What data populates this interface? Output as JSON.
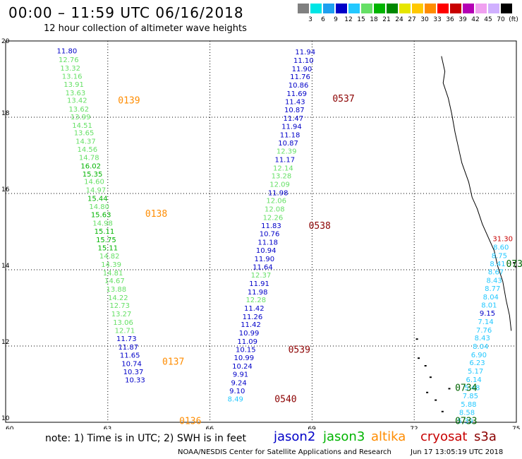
{
  "header": {
    "title": "00:00 – 11:59 UTC 06/16/2018",
    "subtitle": "12 hour collection of altimeter wave heights"
  },
  "color_scale": {
    "labels": [
      "3",
      "6",
      "9",
      "12",
      "15",
      "18",
      "21",
      "24",
      "27",
      "30",
      "33",
      "36",
      "39",
      "42",
      "45",
      "70",
      "(ft)"
    ],
    "colors": [
      "#808080",
      "#00e5e5",
      "#1ea0f0",
      "#0000c8",
      "#23c8ff",
      "#66e066",
      "#00b400",
      "#008800",
      "#e6e600",
      "#ffc800",
      "#ff8c00",
      "#ff0000",
      "#c80000",
      "#b400b4",
      "#f0a0f0",
      "#d0b0ff",
      "#000000"
    ]
  },
  "chart_data": {
    "type": "scatter",
    "xlim": [
      60,
      75
    ],
    "ylim": [
      10,
      20
    ],
    "xticks": [
      "60",
      "63",
      "66",
      "69",
      "72",
      "75"
    ],
    "yticks": [
      "10",
      "12",
      "14",
      "16",
      "18",
      "20"
    ],
    "grid": true,
    "passes": [
      {
        "satellite": "jason3",
        "time_label": "0139",
        "label_color": "#ff8c00",
        "label_lat": 18.45,
        "label_lon": 63.3,
        "points": [
          {
            "lon": 61.8,
            "lat": 19.75,
            "v": "11.80",
            "c": "#0000c8"
          },
          {
            "lon": 61.85,
            "lat": 19.52,
            "v": "12.76",
            "c": "#66e066"
          },
          {
            "lon": 61.9,
            "lat": 19.3,
            "v": "13.32",
            "c": "#66e066"
          },
          {
            "lon": 61.95,
            "lat": 19.08,
            "v": "13.16",
            "c": "#66e066"
          },
          {
            "lon": 62.0,
            "lat": 18.87,
            "v": "13.91",
            "c": "#66e066"
          },
          {
            "lon": 62.05,
            "lat": 18.65,
            "v": "13.63",
            "c": "#66e066"
          },
          {
            "lon": 62.1,
            "lat": 18.45,
            "v": "13.42",
            "c": "#66e066"
          },
          {
            "lon": 62.15,
            "lat": 18.22,
            "v": "13.62",
            "c": "#66e066"
          },
          {
            "lon": 62.2,
            "lat": 18.02,
            "v": "13.99",
            "c": "#66e066"
          },
          {
            "lon": 62.25,
            "lat": 17.8,
            "v": "14.51",
            "c": "#66e066"
          },
          {
            "lon": 62.3,
            "lat": 17.6,
            "v": "13.65",
            "c": "#66e066"
          },
          {
            "lon": 62.35,
            "lat": 17.38,
            "v": "14.37",
            "c": "#66e066"
          },
          {
            "lon": 62.4,
            "lat": 17.17,
            "v": "14.56",
            "c": "#66e066"
          },
          {
            "lon": 62.45,
            "lat": 16.95,
            "v": "14.78",
            "c": "#66e066"
          },
          {
            "lon": 62.5,
            "lat": 16.73,
            "v": "16.02",
            "c": "#00b400"
          },
          {
            "lon": 62.55,
            "lat": 16.52,
            "v": "15.35",
            "c": "#00b400"
          },
          {
            "lon": 62.6,
            "lat": 16.32,
            "v": "14.60",
            "c": "#66e066"
          },
          {
            "lon": 62.65,
            "lat": 16.1,
            "v": "14.97",
            "c": "#66e066"
          },
          {
            "lon": 62.7,
            "lat": 15.88,
            "v": "15.44",
            "c": "#00b400"
          },
          {
            "lon": 62.75,
            "lat": 15.67,
            "v": "14.80",
            "c": "#66e066"
          },
          {
            "lon": 62.8,
            "lat": 15.45,
            "v": "15.63",
            "c": "#00b400"
          },
          {
            "lon": 62.85,
            "lat": 15.23,
            "v": "14.98",
            "c": "#66e066"
          },
          {
            "lon": 62.9,
            "lat": 15.02,
            "v": "15.11",
            "c": "#00b400"
          },
          {
            "lon": 62.95,
            "lat": 14.8,
            "v": "15.75",
            "c": "#00b400"
          },
          {
            "lon": 63.0,
            "lat": 14.58,
            "v": "15.11",
            "c": "#00b400"
          },
          {
            "lon": 63.05,
            "lat": 14.37,
            "v": "14.82",
            "c": "#66e066"
          },
          {
            "lon": 63.1,
            "lat": 14.15,
            "v": "14.39",
            "c": "#66e066"
          },
          {
            "lon": 63.15,
            "lat": 13.93,
            "v": "14.81",
            "c": "#66e066"
          },
          {
            "lon": 63.2,
            "lat": 13.72,
            "v": "14.67",
            "c": "#66e066"
          },
          {
            "lon": 63.25,
            "lat": 13.5,
            "v": "13.88",
            "c": "#66e066"
          },
          {
            "lon": 63.3,
            "lat": 13.28,
            "v": "14.22",
            "c": "#66e066"
          },
          {
            "lon": 63.35,
            "lat": 13.07,
            "v": "12.73",
            "c": "#66e066"
          },
          {
            "lon": 63.4,
            "lat": 12.85,
            "v": "13.27",
            "c": "#66e066"
          }
        ]
      },
      {
        "satellite": "jason3",
        "time_label": "0138",
        "label_color": "#ff8c00",
        "label_lat": 15.48,
        "label_lon": 64.1,
        "points": []
      },
      {
        "satellite": "jason2",
        "time_label": "0137",
        "label_color": "#ff8c00",
        "label_lat": 11.6,
        "label_lon": 64.6,
        "points": [
          {
            "lon": 63.45,
            "lat": 12.63,
            "v": "13.06",
            "c": "#66e066"
          },
          {
            "lon": 63.5,
            "lat": 12.42,
            "v": "12.71",
            "c": "#66e066"
          },
          {
            "lon": 63.55,
            "lat": 12.2,
            "v": "11.73",
            "c": "#0000c8"
          },
          {
            "lon": 63.6,
            "lat": 11.98,
            "v": "11.87",
            "c": "#0000c8"
          },
          {
            "lon": 63.65,
            "lat": 11.77,
            "v": "11.65",
            "c": "#0000c8"
          },
          {
            "lon": 63.7,
            "lat": 11.55,
            "v": "10.74",
            "c": "#0000c8"
          },
          {
            "lon": 63.75,
            "lat": 11.33,
            "v": "10.37",
            "c": "#0000c8"
          },
          {
            "lon": 63.8,
            "lat": 11.12,
            "v": "10.33",
            "c": "#0000c8"
          }
        ]
      },
      {
        "satellite": "altika",
        "time_label": "0136",
        "label_color": "#ff8c00",
        "label_lat": 10.05,
        "label_lon": 65.1,
        "points": []
      },
      {
        "satellite": "jason2",
        "time_label": "0537",
        "label_color": "#8b0000",
        "label_lat": 18.5,
        "label_lon": 69.6,
        "points": [
          {
            "lon": 68.8,
            "lat": 19.72,
            "v": "11.94",
            "c": "#0000c8"
          },
          {
            "lon": 68.75,
            "lat": 19.5,
            "v": "11.10",
            "c": "#0000c8"
          },
          {
            "lon": 68.7,
            "lat": 19.28,
            "v": "11.90",
            "c": "#0000c8"
          },
          {
            "lon": 68.65,
            "lat": 19.07,
            "v": "11.76",
            "c": "#0000c8"
          },
          {
            "lon": 68.6,
            "lat": 18.85,
            "v": "10.86",
            "c": "#0000c8"
          },
          {
            "lon": 68.55,
            "lat": 18.63,
            "v": "11.69",
            "c": "#0000c8"
          },
          {
            "lon": 68.5,
            "lat": 18.42,
            "v": "11.43",
            "c": "#0000c8"
          },
          {
            "lon": 68.48,
            "lat": 18.2,
            "v": "10.87",
            "c": "#0000c8"
          },
          {
            "lon": 68.45,
            "lat": 17.98,
            "v": "11.47",
            "c": "#0000c8"
          },
          {
            "lon": 68.4,
            "lat": 17.77,
            "v": "11.94",
            "c": "#0000c8"
          },
          {
            "lon": 68.35,
            "lat": 17.55,
            "v": "11.18",
            "c": "#0000c8"
          },
          {
            "lon": 68.3,
            "lat": 17.33,
            "v": "10.87",
            "c": "#0000c8"
          },
          {
            "lon": 68.25,
            "lat": 17.12,
            "v": "12.39",
            "c": "#66e066"
          },
          {
            "lon": 68.2,
            "lat": 16.9,
            "v": "11.17",
            "c": "#0000c8"
          },
          {
            "lon": 68.15,
            "lat": 16.68,
            "v": "12.14",
            "c": "#66e066"
          },
          {
            "lon": 68.1,
            "lat": 16.47,
            "v": "13.28",
            "c": "#66e066"
          },
          {
            "lon": 68.05,
            "lat": 16.25,
            "v": "12.09",
            "c": "#66e066"
          },
          {
            "lon": 68.0,
            "lat": 16.03,
            "v": "11.98",
            "c": "#0000c8"
          },
          {
            "lon": 67.95,
            "lat": 15.82,
            "v": "12.06",
            "c": "#66e066"
          },
          {
            "lon": 67.9,
            "lat": 15.6,
            "v": "12.08",
            "c": "#66e066"
          },
          {
            "lon": 67.85,
            "lat": 15.38,
            "v": "12.26",
            "c": "#66e066"
          }
        ]
      },
      {
        "satellite": "jason2",
        "time_label": "0538",
        "label_color": "#8b0000",
        "label_lat": 15.17,
        "label_lon": 68.9,
        "points": [
          {
            "lon": 67.8,
            "lat": 15.17,
            "v": "11.83",
            "c": "#0000c8"
          },
          {
            "lon": 67.75,
            "lat": 14.95,
            "v": "10.76",
            "c": "#0000c8"
          },
          {
            "lon": 67.7,
            "lat": 14.73,
            "v": "11.18",
            "c": "#0000c8"
          },
          {
            "lon": 67.65,
            "lat": 14.52,
            "v": "10.94",
            "c": "#0000c8"
          },
          {
            "lon": 67.6,
            "lat": 14.3,
            "v": "11.90",
            "c": "#0000c8"
          },
          {
            "lon": 67.55,
            "lat": 14.08,
            "v": "11.64",
            "c": "#0000c8"
          },
          {
            "lon": 67.5,
            "lat": 13.87,
            "v": "12.37",
            "c": "#66e066"
          },
          {
            "lon": 67.45,
            "lat": 13.65,
            "v": "11.91",
            "c": "#0000c8"
          },
          {
            "lon": 67.4,
            "lat": 13.43,
            "v": "11.98",
            "c": "#0000c8"
          },
          {
            "lon": 67.35,
            "lat": 13.22,
            "v": "12.28",
            "c": "#66e066"
          },
          {
            "lon": 67.3,
            "lat": 13.0,
            "v": "11.42",
            "c": "#0000c8"
          },
          {
            "lon": 67.25,
            "lat": 12.78,
            "v": "11.26",
            "c": "#0000c8"
          },
          {
            "lon": 67.2,
            "lat": 12.57,
            "v": "11.42",
            "c": "#0000c8"
          },
          {
            "lon": 67.15,
            "lat": 12.35,
            "v": "10.99",
            "c": "#0000c8"
          },
          {
            "lon": 67.1,
            "lat": 12.13,
            "v": "11.09",
            "c": "#0000c8"
          }
        ]
      },
      {
        "satellite": "jason2",
        "time_label": "0539",
        "label_color": "#8b0000",
        "label_lat": 11.92,
        "label_lon": 68.3,
        "points": [
          {
            "lon": 67.05,
            "lat": 11.92,
            "v": "10.15",
            "c": "#0000c8"
          },
          {
            "lon": 67.0,
            "lat": 11.7,
            "v": "10.99",
            "c": "#0000c8"
          },
          {
            "lon": 66.95,
            "lat": 11.48,
            "v": "10.24",
            "c": "#0000c8"
          },
          {
            "lon": 66.9,
            "lat": 11.27,
            "v": "9.91",
            "c": "#0000c8"
          },
          {
            "lon": 66.85,
            "lat": 11.05,
            "v": "9.24",
            "c": "#0000c8"
          },
          {
            "lon": 66.8,
            "lat": 10.83,
            "v": "9.10",
            "c": "#0000c8"
          },
          {
            "lon": 66.75,
            "lat": 10.62,
            "v": "8.49",
            "c": "#23c8ff"
          }
        ]
      },
      {
        "satellite": "jason2",
        "time_label": "0540",
        "label_color": "#8b0000",
        "label_lat": 10.62,
        "label_lon": 67.9,
        "points": []
      },
      {
        "satellite": "cryosat",
        "time_label": "0733",
        "label_color": "#006400",
        "label_lat": 10.05,
        "label_lon": 73.2,
        "points": [
          {
            "lon": 74.6,
            "lat": 14.82,
            "v": "31.30",
            "c": "#c80000"
          },
          {
            "lon": 74.55,
            "lat": 14.6,
            "v": "8.60",
            "c": "#23c8ff"
          },
          {
            "lon": 74.5,
            "lat": 14.38,
            "v": "8.75",
            "c": "#23c8ff"
          },
          {
            "lon": 74.45,
            "lat": 14.17,
            "v": "8.41",
            "c": "#23c8ff"
          },
          {
            "lon": 74.4,
            "lat": 13.95,
            "v": "8.67",
            "c": "#23c8ff"
          },
          {
            "lon": 74.35,
            "lat": 13.73,
            "v": "8.43",
            "c": "#23c8ff"
          },
          {
            "lon": 74.3,
            "lat": 13.52,
            "v": "8.77",
            "c": "#23c8ff"
          },
          {
            "lon": 74.25,
            "lat": 13.3,
            "v": "8.04",
            "c": "#23c8ff"
          },
          {
            "lon": 74.2,
            "lat": 13.08,
            "v": "8.01",
            "c": "#23c8ff"
          },
          {
            "lon": 74.15,
            "lat": 12.87,
            "v": "9.15",
            "c": "#0000c8"
          },
          {
            "lon": 74.1,
            "lat": 12.65,
            "v": "7.14",
            "c": "#23c8ff"
          },
          {
            "lon": 74.05,
            "lat": 12.43,
            "v": "7.76",
            "c": "#23c8ff"
          },
          {
            "lon": 74.0,
            "lat": 12.22,
            "v": "8.43",
            "c": "#23c8ff"
          },
          {
            "lon": 73.95,
            "lat": 12.0,
            "v": "8.04",
            "c": "#23c8ff"
          },
          {
            "lon": 73.9,
            "lat": 11.78,
            "v": "6.90",
            "c": "#23c8ff"
          },
          {
            "lon": 73.85,
            "lat": 11.57,
            "v": "6.23",
            "c": "#23c8ff"
          },
          {
            "lon": 73.8,
            "lat": 11.35,
            "v": "5.17",
            "c": "#23c8ff"
          },
          {
            "lon": 73.75,
            "lat": 11.13,
            "v": "6.14",
            "c": "#23c8ff"
          },
          {
            "lon": 73.7,
            "lat": 10.92,
            "v": "5.48",
            "c": "#23c8ff"
          },
          {
            "lon": 73.65,
            "lat": 10.7,
            "v": "7.85",
            "c": "#23c8ff"
          },
          {
            "lon": 73.6,
            "lat": 10.48,
            "v": "5.88",
            "c": "#23c8ff"
          },
          {
            "lon": 73.55,
            "lat": 10.27,
            "v": "8.58",
            "c": "#23c8ff"
          },
          {
            "lon": 73.5,
            "lat": 10.05,
            "v": "5.39",
            "c": "#23c8ff"
          }
        ]
      },
      {
        "satellite": "cryosat",
        "time_label": "0734",
        "label_color": "#006400",
        "label_lat": 10.92,
        "label_lon": 73.2,
        "points": []
      },
      {
        "satellite": "cryosat",
        "time_label": "073",
        "label_color": "#006400",
        "label_lat": 14.17,
        "label_lon": 74.7,
        "points": []
      }
    ]
  },
  "footer": {
    "note": "note: 1) Time is in UTC; 2) SWH is in feet",
    "legend": [
      {
        "name": "jason2",
        "color": "#0000c8"
      },
      {
        "name": "jason3",
        "color": "#00b400"
      },
      {
        "name": "altika",
        "color": "#ff8c00"
      },
      {
        "name": "cryosat",
        "color": "#c80000"
      },
      {
        "name": "s3a",
        "color": "#8b0000"
      }
    ],
    "credit": "NOAA/NESDIS Center for Satellite Applications and Research",
    "timestamp": "Jun 17 13:05:19 UTC 2018"
  }
}
